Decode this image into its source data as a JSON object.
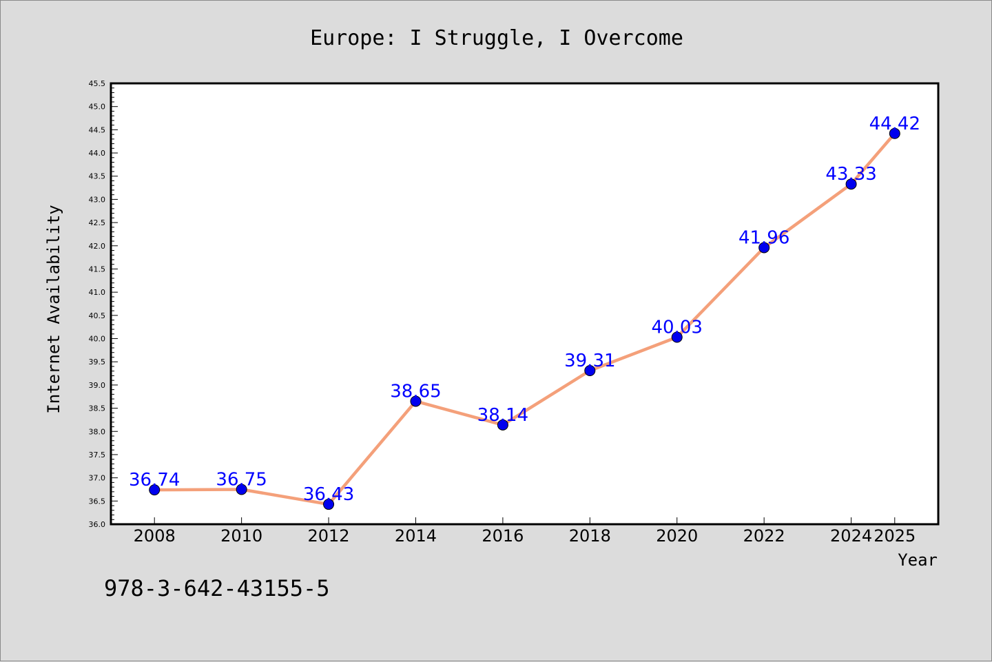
{
  "chart_data": {
    "type": "line",
    "title": "Europe: I Struggle, I Overcome",
    "xlabel": "Year",
    "ylabel": "Internet Availability",
    "x": [
      2008,
      2010,
      2012,
      2014,
      2016,
      2018,
      2020,
      2022,
      2024,
      2025
    ],
    "x_tick_labels": [
      "2008",
      "2010",
      "2012",
      "2014",
      "2016",
      "2018",
      "2020",
      "2022",
      "2024",
      "2025"
    ],
    "series": [
      {
        "values": [
          36.74,
          36.75,
          36.43,
          38.65,
          38.14,
          39.31,
          40.03,
          41.96,
          43.33,
          44.42
        ],
        "labels": [
          "36.74",
          "36.75",
          "36.43",
          "38.65",
          "38.14",
          "39.31",
          "40.03",
          "41.96",
          "43.33",
          "44.42"
        ],
        "line_color": "#f4a07a",
        "marker_color": "#0000ee"
      }
    ],
    "ylim": [
      36.0,
      45.5
    ],
    "y_ticks": [
      "36.0",
      "36.5",
      "37.0",
      "37.5",
      "38.0",
      "38.5",
      "39.0",
      "39.5",
      "40.0",
      "40.5",
      "41.0",
      "41.5",
      "42.0",
      "42.5",
      "43.0",
      "43.5",
      "44.0",
      "44.5",
      "45.0",
      "45.5"
    ],
    "grid": false,
    "legend": "none"
  },
  "annotation": {
    "isbn": "978-3-642-43155-5"
  },
  "colors": {
    "background": "#dcdcdc",
    "plot_background": "#ffffff",
    "label_color": "#0000ff"
  }
}
